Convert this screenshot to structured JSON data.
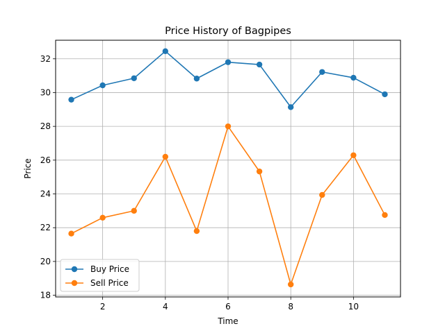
{
  "chart_data": {
    "type": "line",
    "title": "Price History of Bagpipes",
    "xlabel": "Time",
    "ylabel": "Price",
    "x": [
      1,
      2,
      3,
      4,
      5,
      6,
      7,
      8,
      9,
      10,
      11
    ],
    "xlim": [
      0.5,
      11.5
    ],
    "ylim": [
      17.9,
      33.1
    ],
    "xticks": [
      2,
      4,
      6,
      8,
      10
    ],
    "yticks": [
      18,
      20,
      22,
      24,
      26,
      28,
      30,
      32
    ],
    "grid": true,
    "legend_position": "lower-left",
    "series": [
      {
        "name": "Buy Price",
        "color": "#1f77b4",
        "marker": "circle",
        "values": [
          29.58,
          30.43,
          30.85,
          32.45,
          30.83,
          31.8,
          31.66,
          29.14,
          31.22,
          30.88,
          29.9
        ]
      },
      {
        "name": "Sell Price",
        "color": "#ff7f0e",
        "marker": "circle",
        "values": [
          21.65,
          22.59,
          23.0,
          26.2,
          21.8,
          28.0,
          25.33,
          18.64,
          23.94,
          26.29,
          22.75
        ]
      }
    ]
  }
}
